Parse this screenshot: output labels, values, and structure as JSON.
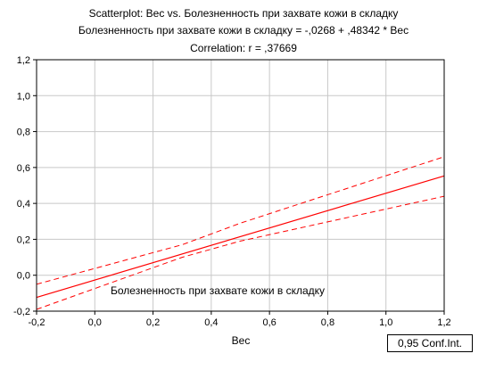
{
  "chart_data": {
    "type": "scatter",
    "title": "Scatterplot: Вес vs. Болезненность при захвате кожи в складку",
    "subtitle": "Болезненность при захвате кожи в складку = -,0268 + ,48342 * Вес",
    "correlation_text": "Correlation: r = ,37669",
    "xlabel": "Вес",
    "ylabel": "",
    "xlim": [
      -0.2,
      1.2
    ],
    "ylim": [
      -0.2,
      1.2
    ],
    "xticks": [
      -0.2,
      0.0,
      0.2,
      0.4,
      0.6,
      0.8,
      1.0,
      1.2
    ],
    "yticks": [
      -0.2,
      0.0,
      0.2,
      0.4,
      0.6,
      0.8,
      1.0,
      1.2
    ],
    "xtick_labels": [
      "-0,2",
      "0,0",
      "0,2",
      "0,4",
      "0,6",
      "0,8",
      "1,0",
      "1,2"
    ],
    "ytick_labels": [
      "-0,2",
      "0,0",
      "0,2",
      "0,4",
      "0,6",
      "0,8",
      "1,0",
      "1,2"
    ],
    "grid": true,
    "regression": {
      "intercept": -0.0268,
      "slope": 0.48342
    },
    "confidence_band": {
      "lower": [
        [
          -0.2,
          -0.19
        ],
        [
          0.3,
          0.1
        ],
        [
          0.5,
          0.19
        ],
        [
          1.2,
          0.44
        ]
      ],
      "upper": [
        [
          -0.2,
          -0.05
        ],
        [
          0.3,
          0.17
        ],
        [
          0.5,
          0.29
        ],
        [
          1.2,
          0.66
        ]
      ]
    },
    "annotation": "Болезненность при захвате кожи в складку",
    "legend_text": "0,95 Conf.Int.",
    "colors": {
      "fit_line": "#ff0000",
      "conf_band": "#ff0000",
      "grid": "#c8c8c8"
    }
  }
}
